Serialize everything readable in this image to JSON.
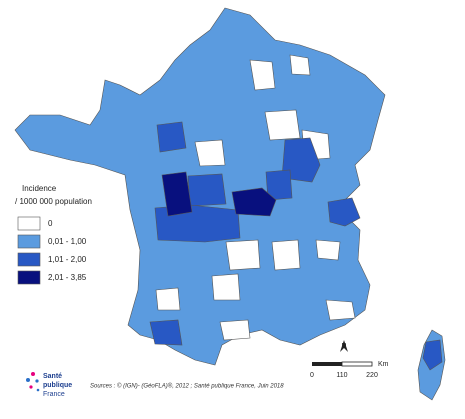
{
  "legend": {
    "title": "Incidence",
    "subtitle": "/ 1000 000 population",
    "items": [
      {
        "label": "0",
        "color": "#ffffff"
      },
      {
        "label": "0,01 - 1,00",
        "color": "#5b9bdf"
      },
      {
        "label": "1,01 - 2,00",
        "color": "#2858c4"
      },
      {
        "label": "2,01 - 3,85",
        "color": "#08107e"
      }
    ]
  },
  "north": "N",
  "scale": {
    "ticks": [
      "0",
      "110",
      "220"
    ],
    "unit": "Km"
  },
  "sources": "Sources : © (IGN)- (GéoFLA)®, 2012 ; Santé publique France, Juin 2018",
  "logo": [
    "Santé",
    "publique",
    "France"
  ]
}
